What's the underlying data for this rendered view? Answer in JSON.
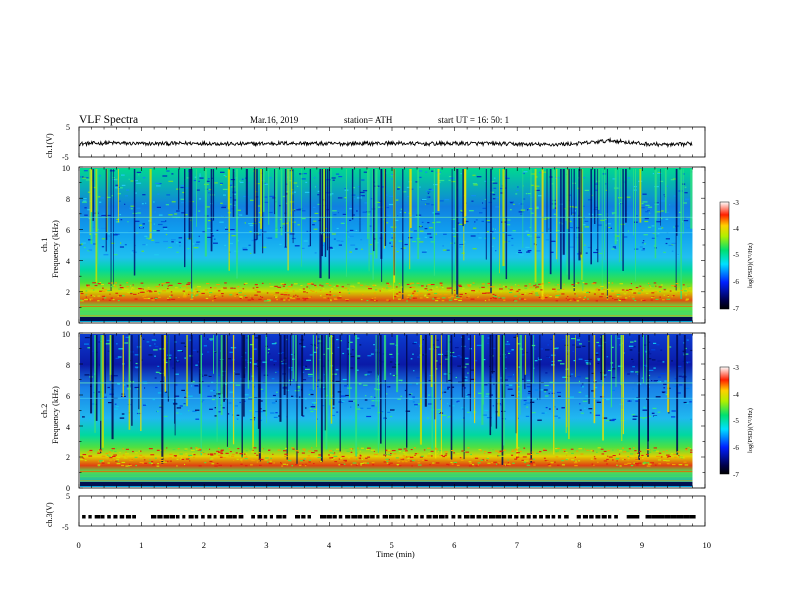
{
  "header": {
    "title": "VLF  Spectra",
    "date": "Mar.16, 2019",
    "station": "station= ATH",
    "start": "start  UT  =    16: 50: 1"
  },
  "colors": {
    "spectrogram_background": "#00e07a",
    "low_psd": "#001a8c",
    "high_psd": "#e01010",
    "trace": "#000000"
  },
  "chart_data": [
    {
      "type": "line",
      "name": "channel-1-voltage",
      "ylabel": "ch.1(V)",
      "ylim": [
        -5,
        5
      ],
      "yticks": [
        "5",
        "-5"
      ],
      "xlim": [
        0,
        10
      ],
      "description_values": "noisy trace around -0.5 V",
      "x": [
        0,
        0.5,
        1,
        1.5,
        2,
        2.5,
        3,
        3.5,
        4,
        4.5,
        5,
        5.5,
        6,
        6.5,
        7,
        7.5,
        8,
        8.5,
        9,
        9.5,
        9.8
      ],
      "y": [
        -0.6,
        -0.3,
        -0.6,
        -0.5,
        -0.4,
        -0.7,
        -0.5,
        -0.4,
        -0.6,
        -0.5,
        -0.4,
        -0.6,
        -0.5,
        -0.5,
        -0.7,
        -0.9,
        -0.5,
        0.5,
        -0.6,
        -1.0,
        -0.5
      ]
    },
    {
      "type": "heatmap",
      "name": "channel-1-spectrogram",
      "ylabel_top": "ch.1",
      "ylabel": "Frequency (kHz)",
      "ylim": [
        0,
        10
      ],
      "yticks": [
        "0",
        "2",
        "4",
        "6",
        "8",
        "10"
      ],
      "xlim": [
        0,
        10
      ],
      "data_xmax": 9.8,
      "colorbar": {
        "label": "log(PSD)(V²/Hz)",
        "ticks": [
          "-3",
          "-4",
          "-5",
          "-6",
          "-7"
        ],
        "range": [
          -7,
          -3
        ]
      },
      "frequency_profile_khz": [
        0,
        1,
        2,
        2.5,
        3,
        4,
        5,
        6,
        7,
        8,
        9,
        10
      ],
      "log_psd_profile": [
        -4.2,
        -4.6,
        -4.3,
        -3.8,
        -4.3,
        -5.0,
        -5.2,
        -5.4,
        -5.8,
        -5.6,
        -5.4,
        -5.3
      ]
    },
    {
      "type": "heatmap",
      "name": "channel-2-spectrogram",
      "ylabel_top": "ch.2",
      "ylabel": "Frequency (kHz)",
      "ylim": [
        0,
        10
      ],
      "yticks": [
        "0",
        "2",
        "4",
        "6",
        "8",
        "10"
      ],
      "xlim": [
        0,
        10
      ],
      "data_xmax": 9.8,
      "colorbar": {
        "label": "log(PSD)(V²/Hz)",
        "ticks": [
          "-3",
          "-4",
          "-5",
          "-6",
          "-7"
        ],
        "range": [
          -7,
          -3
        ]
      },
      "frequency_profile_khz": [
        0,
        1,
        2,
        2.5,
        3,
        4,
        5,
        6,
        7,
        8,
        9,
        10
      ],
      "log_psd_profile": [
        -4.3,
        -4.6,
        -4.2,
        -3.9,
        -4.4,
        -5.0,
        -5.3,
        -5.6,
        -6.1,
        -5.9,
        -5.6,
        -5.5
      ]
    },
    {
      "type": "line",
      "name": "channel-3-voltage",
      "ylabel": "ch.3(V)",
      "ylim": [
        -5,
        5
      ],
      "yticks": [
        "5",
        "-5"
      ],
      "xlim": [
        0,
        10
      ],
      "description_values": "dashed pulse train near -2 V",
      "x": [
        0,
        9.8
      ],
      "y": [
        -2,
        -2
      ]
    }
  ],
  "xaxis": {
    "label": "Time  (min)",
    "ticks": [
      "0",
      "1",
      "2",
      "3",
      "4",
      "5",
      "6",
      "7",
      "8",
      "9",
      "10"
    ],
    "range": [
      0,
      10
    ]
  }
}
